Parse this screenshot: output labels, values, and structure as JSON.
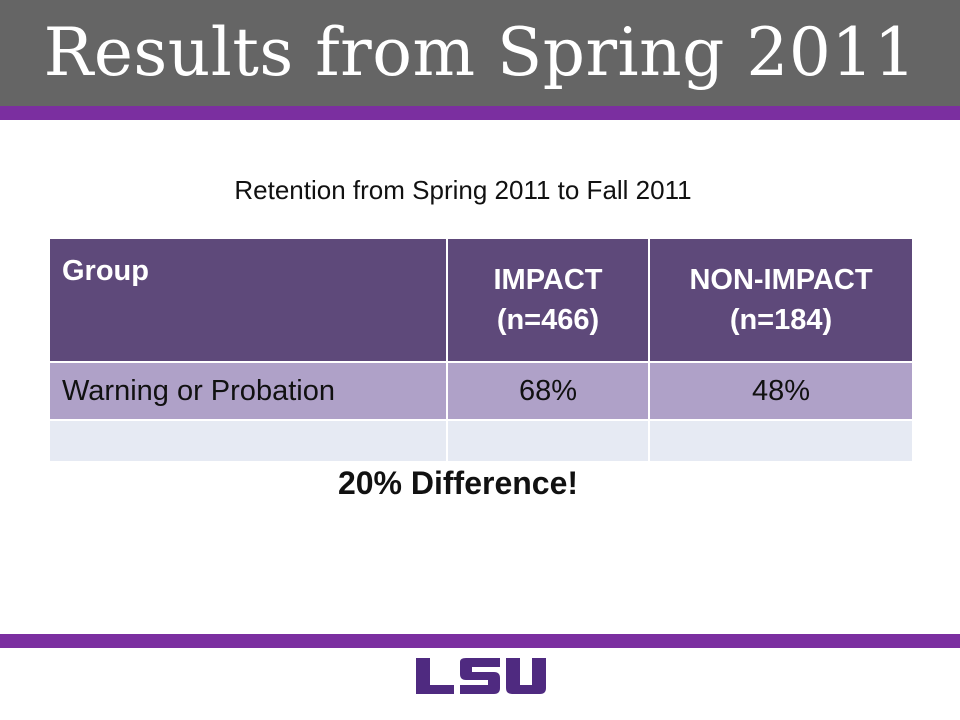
{
  "header": {
    "title": "Results from Spring 2011"
  },
  "subtitle": "Retention from Spring 2011 to Fall 2011",
  "table": {
    "headers": [
      {
        "line1": "Group",
        "line2": ""
      },
      {
        "line1": "IMPACT",
        "line2": "(n=466)"
      },
      {
        "line1": "NON-IMPACT",
        "line2": "(n=184)"
      }
    ],
    "rows": [
      [
        "Warning or Probation",
        "68%",
        "48%"
      ],
      [
        "",
        "",
        ""
      ]
    ]
  },
  "callout": "20% Difference!",
  "logo": {
    "text": "LSU",
    "color": "#4f2a80"
  },
  "colors": {
    "title_bar": "#656565",
    "accent_rule": "#7b2fa0",
    "header_fill": "#5e497a",
    "row_fill": "#afa1c8",
    "empty_row_fill": "#e6eaf3"
  }
}
